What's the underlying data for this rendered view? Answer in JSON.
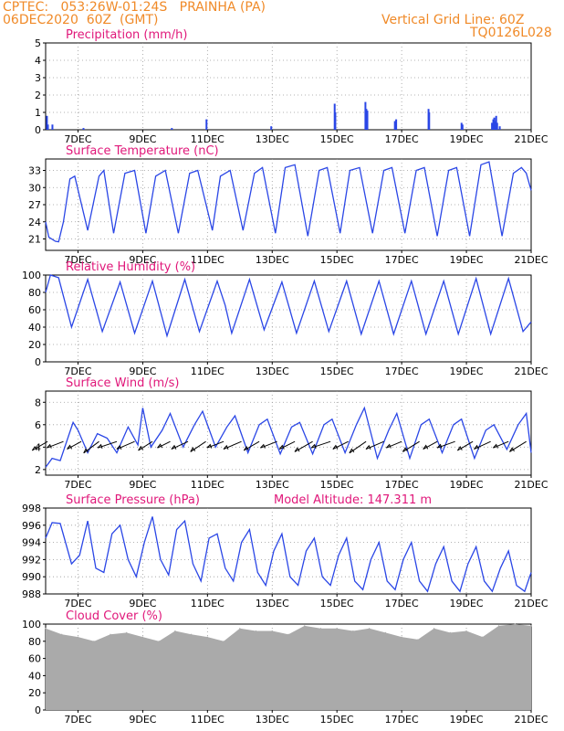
{
  "header": {
    "line1": "CPTEC:   053:26W-01:24S   PRAINHA (PA)",
    "line2": "06DEC2020  60Z  (GMT)",
    "grid_note": "Vertical Grid Line: 60Z",
    "code": "TQ0126L028"
  },
  "colors": {
    "header": "#f08a28",
    "titles": "#e0187a",
    "series": "#2a46e6",
    "cloud": "#aaaaaa",
    "grid": "#9a9a9a"
  },
  "chart_data": [
    {
      "id": "precip",
      "type": "bar",
      "title": "Precipitation  (mm/h)",
      "x_range": [
        0,
        15
      ],
      "x_ticks": [
        1,
        3,
        5,
        7,
        9,
        11,
        13,
        15
      ],
      "x_tick_labels": [
        "7DEC",
        "9DEC",
        "11DEC",
        "13DEC",
        "15DEC",
        "17DEC",
        "19DEC",
        "21DEC"
      ],
      "ylim": [
        0,
        5
      ],
      "y_ticks": [
        0,
        1,
        2,
        3,
        4,
        5
      ],
      "x": [
        0.04,
        0.07,
        0.21,
        1.17,
        3.9,
        4.97,
        6.97,
        8.93,
        8.95,
        9.88,
        9.91,
        9.94,
        10.79,
        10.83,
        11.83,
        11.85,
        12.85,
        12.88,
        13.79,
        13.83,
        13.86,
        13.89,
        13.92,
        13.95,
        14.03
      ],
      "values": [
        0.8,
        0.3,
        0.3,
        0.1,
        0.1,
        0.6,
        0.2,
        1.5,
        1.0,
        1.6,
        1.2,
        1.1,
        0.5,
        0.6,
        1.2,
        1.0,
        0.4,
        0.3,
        0.4,
        0.6,
        0.7,
        0.5,
        0.8,
        0.4,
        0.2
      ]
    },
    {
      "id": "temp",
      "type": "line",
      "title": "Surface Temperature  (nC)",
      "x_range": [
        0,
        15
      ],
      "x_ticks": [
        1,
        3,
        5,
        7,
        9,
        11,
        13,
        15
      ],
      "x_tick_labels": [
        "7DEC",
        "9DEC",
        "11DEC",
        "13DEC",
        "15DEC",
        "17DEC",
        "19DEC",
        "21DEC"
      ],
      "ylim": [
        19,
        35
      ],
      "y_ticks": [
        21,
        24,
        27,
        30,
        33
      ],
      "x": [
        0,
        0.1,
        0.3,
        0.4,
        0.55,
        0.75,
        0.9,
        1.3,
        1.65,
        1.8,
        2.1,
        2.45,
        2.75,
        3.1,
        3.4,
        3.7,
        4.1,
        4.45,
        4.7,
        5.15,
        5.4,
        5.7,
        6.1,
        6.45,
        6.7,
        7.1,
        7.4,
        7.7,
        8.1,
        8.45,
        8.7,
        9.1,
        9.4,
        9.7,
        10.1,
        10.45,
        10.7,
        11.1,
        11.45,
        11.7,
        12.1,
        12.45,
        12.7,
        13.1,
        13.45,
        13.7,
        14.1,
        14.45,
        14.7,
        14.85,
        15
      ],
      "values": [
        24,
        21.3,
        20.6,
        20.5,
        24,
        31.5,
        32,
        22.5,
        32,
        33,
        22,
        32.5,
        33,
        22,
        32,
        33,
        22,
        32.5,
        33,
        22.5,
        32,
        33,
        22.5,
        32.5,
        33.5,
        22,
        33.5,
        34,
        21.5,
        33,
        33.5,
        22,
        33,
        33.5,
        22,
        33,
        33.5,
        22,
        33,
        33.5,
        21.5,
        33,
        33.5,
        21.5,
        34,
        34.5,
        21.5,
        32.5,
        33.5,
        32.5,
        29.5
      ]
    },
    {
      "id": "rh",
      "type": "line",
      "title": "Relative Humidity  (%)",
      "x_range": [
        0,
        15
      ],
      "x_ticks": [
        1,
        3,
        5,
        7,
        9,
        11,
        13,
        15
      ],
      "x_tick_labels": [
        "7DEC",
        "9DEC",
        "11DEC",
        "13DEC",
        "15DEC",
        "17DEC",
        "19DEC",
        "21DEC"
      ],
      "ylim": [
        0,
        100
      ],
      "y_ticks": [
        0,
        20,
        40,
        60,
        80,
        100
      ],
      "x": [
        0,
        0.15,
        0.4,
        0.8,
        1.3,
        1.75,
        2.3,
        2.75,
        3.3,
        3.75,
        4.3,
        4.75,
        5.3,
        5.55,
        5.75,
        6.3,
        6.75,
        7.3,
        7.75,
        8.3,
        8.75,
        9.3,
        9.75,
        10.3,
        10.75,
        11.3,
        11.75,
        12.3,
        12.75,
        13.3,
        13.75,
        14.3,
        14.75,
        15
      ],
      "values": [
        80,
        100,
        97,
        40,
        95,
        35,
        92,
        33,
        93,
        30,
        95,
        35,
        93,
        65,
        33,
        95,
        37,
        92,
        33,
        93,
        35,
        93,
        32,
        93,
        32,
        93,
        32,
        93,
        32,
        96,
        32,
        96,
        35,
        46
      ]
    },
    {
      "id": "wind",
      "type": "line",
      "title": "Surface Wind  (m/s)",
      "x_range": [
        0,
        15
      ],
      "x_ticks": [
        1,
        3,
        5,
        7,
        9,
        11,
        13,
        15
      ],
      "x_tick_labels": [
        "7DEC",
        "9DEC",
        "11DEC",
        "13DEC",
        "15DEC",
        "17DEC",
        "19DEC",
        "21DEC"
      ],
      "ylim": [
        1.5,
        9
      ],
      "y_ticks": [
        2,
        4,
        6,
        8
      ],
      "x": [
        0,
        0.2,
        0.45,
        0.85,
        1.0,
        1.3,
        1.6,
        1.9,
        2.2,
        2.55,
        2.85,
        3.0,
        3.25,
        3.6,
        3.85,
        4.25,
        4.6,
        4.85,
        5.25,
        5.6,
        5.85,
        6.25,
        6.6,
        6.85,
        7.25,
        7.6,
        7.85,
        8.25,
        8.6,
        8.85,
        9.25,
        9.6,
        9.85,
        10.25,
        10.6,
        10.85,
        11.25,
        11.6,
        11.85,
        12.25,
        12.6,
        12.85,
        13.25,
        13.6,
        13.85,
        14.25,
        14.6,
        14.85,
        15
      ],
      "values": [
        2.2,
        3,
        2.8,
        6.2,
        5.5,
        3.5,
        5.2,
        4.8,
        3.5,
        5.8,
        4.2,
        7.5,
        4,
        5.5,
        7,
        4,
        6,
        7.2,
        4,
        5.8,
        6.8,
        3.5,
        6,
        6.5,
        3.4,
        5.8,
        6.2,
        3.4,
        6,
        6.5,
        3.5,
        6,
        7.5,
        3,
        5.5,
        7,
        3,
        6,
        6.5,
        3.5,
        6,
        6.5,
        3,
        5.5,
        6,
        3.8,
        6,
        7,
        3.5
      ],
      "vectors": {
        "x": [
          0.06,
          0.55,
          1.1,
          1.65,
          2.2,
          2.75,
          3.3,
          3.85,
          4.4,
          4.95,
          5.5,
          6.05,
          6.6,
          7.15,
          7.7,
          8.25,
          8.8,
          9.35,
          9.9,
          10.45,
          11.0,
          11.55,
          12.1,
          12.65,
          13.2,
          13.75,
          14.3,
          14.85
        ],
        "u": [
          -1.2,
          -1.3,
          -1.1,
          -1.2,
          -1.5,
          -1.4,
          -1.1,
          -1.0,
          -1.3,
          -1.2,
          -1.3,
          -1.4,
          -1.2,
          -1.3,
          -1.2,
          -1.4,
          -1.5,
          -1.2,
          -1.3,
          -1.4,
          -1.2,
          -1.3,
          -1.1,
          -1.4,
          -1.2,
          -1.3,
          -1.2,
          -1.3
        ],
        "v": [
          -0.7,
          -0.5,
          -0.6,
          -0.9,
          -0.5,
          -0.6,
          -0.7,
          -0.5,
          -0.6,
          -0.8,
          -0.5,
          -0.6,
          -0.7,
          -0.5,
          -0.6,
          -0.8,
          -0.5,
          -0.6,
          -0.9,
          -0.6,
          -0.5,
          -0.8,
          -0.6,
          -0.5,
          -0.7,
          -0.6,
          -0.5,
          -0.8
        ]
      }
    },
    {
      "id": "pressure",
      "type": "line",
      "title": "Surface Pressure  (hPa)",
      "annotation": "Model Altitude:  147.311  m",
      "x_range": [
        0,
        15
      ],
      "x_ticks": [
        1,
        3,
        5,
        7,
        9,
        11,
        13,
        15
      ],
      "x_tick_labels": [
        "7DEC",
        "9DEC",
        "11DEC",
        "13DEC",
        "15DEC",
        "17DEC",
        "19DEC",
        "21DEC"
      ],
      "ylim": [
        988,
        998
      ],
      "y_ticks": [
        988,
        990,
        992,
        994,
        996,
        998
      ],
      "x": [
        0,
        0.2,
        0.45,
        0.8,
        1.05,
        1.3,
        1.55,
        1.8,
        2.05,
        2.3,
        2.55,
        2.8,
        3.05,
        3.3,
        3.55,
        3.8,
        4.05,
        4.3,
        4.55,
        4.8,
        5.05,
        5.3,
        5.55,
        5.8,
        6.05,
        6.3,
        6.55,
        6.8,
        7.05,
        7.3,
        7.55,
        7.8,
        8.05,
        8.3,
        8.55,
        8.8,
        9.05,
        9.3,
        9.55,
        9.8,
        10.05,
        10.3,
        10.55,
        10.8,
        11.05,
        11.3,
        11.55,
        11.8,
        12.05,
        12.3,
        12.55,
        12.8,
        13.05,
        13.3,
        13.55,
        13.8,
        14.05,
        14.3,
        14.55,
        14.8,
        15
      ],
      "values": [
        994.5,
        996.3,
        996.2,
        991.5,
        992.5,
        996.5,
        991,
        990.5,
        995,
        996,
        992,
        990,
        994,
        997,
        992,
        990.2,
        995.5,
        996.5,
        991.5,
        989.5,
        994.5,
        995,
        991,
        989.5,
        994,
        995.5,
        990.5,
        989,
        993,
        995,
        990,
        989,
        993,
        994.5,
        990,
        989,
        992.5,
        994.5,
        989.5,
        988.5,
        992,
        994,
        989.5,
        988.5,
        992,
        994,
        989.5,
        988.3,
        991.5,
        993.5,
        989.5,
        988.3,
        991.5,
        993.5,
        989.5,
        988.3,
        991,
        993,
        989,
        988.3,
        990.5
      ]
    },
    {
      "id": "cloud",
      "type": "bar",
      "title": "Cloud Cover  (%)",
      "x_range": [
        0,
        15
      ],
      "x_ticks": [
        1,
        3,
        5,
        7,
        9,
        11,
        13,
        15
      ],
      "x_tick_labels": [
        "7DEC",
        "9DEC",
        "11DEC",
        "13DEC",
        "15DEC",
        "17DEC",
        "19DEC",
        "21DEC"
      ],
      "ylim": [
        0,
        100
      ],
      "y_ticks": [
        0,
        20,
        40,
        60,
        80,
        100
      ],
      "x": [
        0.0,
        0.5,
        1.0,
        1.5,
        2.0,
        2.5,
        3.0,
        3.5,
        4.0,
        4.5,
        5.0,
        5.5,
        6.0,
        6.5,
        7.0,
        7.5,
        8.0,
        8.5,
        9.0,
        9.5,
        10.0,
        10.5,
        11.0,
        11.5,
        12.0,
        12.5,
        13.0,
        13.5,
        14.0,
        14.5,
        15.0
      ],
      "values": [
        95,
        88,
        85,
        80,
        88,
        90,
        85,
        80,
        92,
        88,
        85,
        80,
        95,
        92,
        92,
        88,
        98,
        95,
        95,
        92,
        95,
        90,
        85,
        82,
        95,
        90,
        92,
        85,
        98,
        100,
        98
      ]
    }
  ]
}
